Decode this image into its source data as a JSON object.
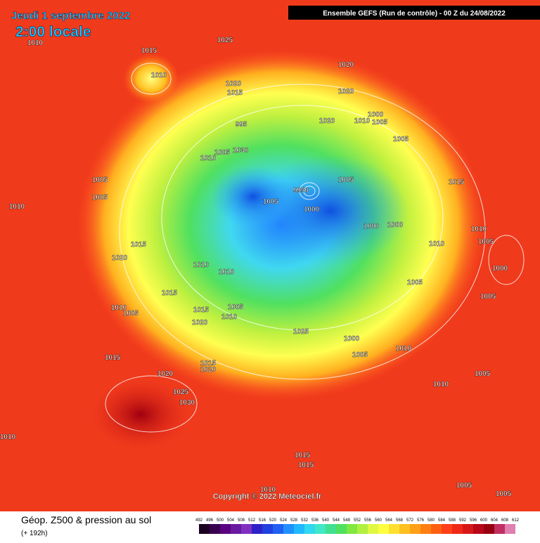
{
  "header": {
    "date": "Jeudi 1 septembre 2022",
    "time": "2:00 locale",
    "model": "Ensemble GEFS  (Run de contrôle)  - 00 Z du 24/08/2022"
  },
  "copyright": "Copyright © 2022 Meteociel.fr",
  "legend": {
    "title": "Géop. Z500 & pression au sol",
    "lead": "(+ 192h)",
    "scale": [
      492,
      496,
      500,
      504,
      508,
      512,
      516,
      520,
      524,
      528,
      532,
      536,
      540,
      544,
      548,
      552,
      556,
      560,
      564,
      568,
      572,
      576,
      580,
      584,
      588,
      592,
      596,
      600,
      604,
      608,
      612
    ],
    "colors": [
      "#1a0020",
      "#3a0050",
      "#5a0080",
      "#6a1aa0",
      "#8030c0",
      "#3020c8",
      "#2040e0",
      "#2060f0",
      "#2090ff",
      "#20b8ff",
      "#30d8f0",
      "#40e8c8",
      "#40e090",
      "#50e060",
      "#80e840",
      "#b0f040",
      "#e0f840",
      "#ffff40",
      "#ffe030",
      "#ffc020",
      "#ffa018",
      "#ff8010",
      "#ff6010",
      "#ff4018",
      "#f02818",
      "#d81818",
      "#b80818",
      "#980010",
      "#c03060",
      "#e080b0",
      "#ffc0e0"
    ]
  },
  "isobars": [
    "1010",
    "1015",
    "1025",
    "1010",
    "1020",
    "1015",
    "1020",
    "1020",
    "1020",
    "1000",
    "1010",
    "1005",
    "1005",
    "995",
    "1005",
    "1030",
    "1010",
    "1005",
    "9950",
    "1005",
    "1000",
    "1015",
    "1005",
    "1005",
    "1010",
    "1000",
    "1000",
    "1010",
    "1015",
    "1020",
    "1010",
    "1005",
    "1000",
    "1010",
    "1010",
    "1005",
    "1015",
    "1005",
    "1010",
    "1005",
    "1015",
    "1005",
    "1020",
    "1010",
    "1025",
    "1000",
    "1010",
    "1005",
    "1015",
    "1015",
    "1020",
    "1020",
    "1005",
    "1010",
    "1025",
    "1030",
    "1010",
    "1015",
    "1015",
    "1010",
    "1005",
    "1005"
  ]
}
